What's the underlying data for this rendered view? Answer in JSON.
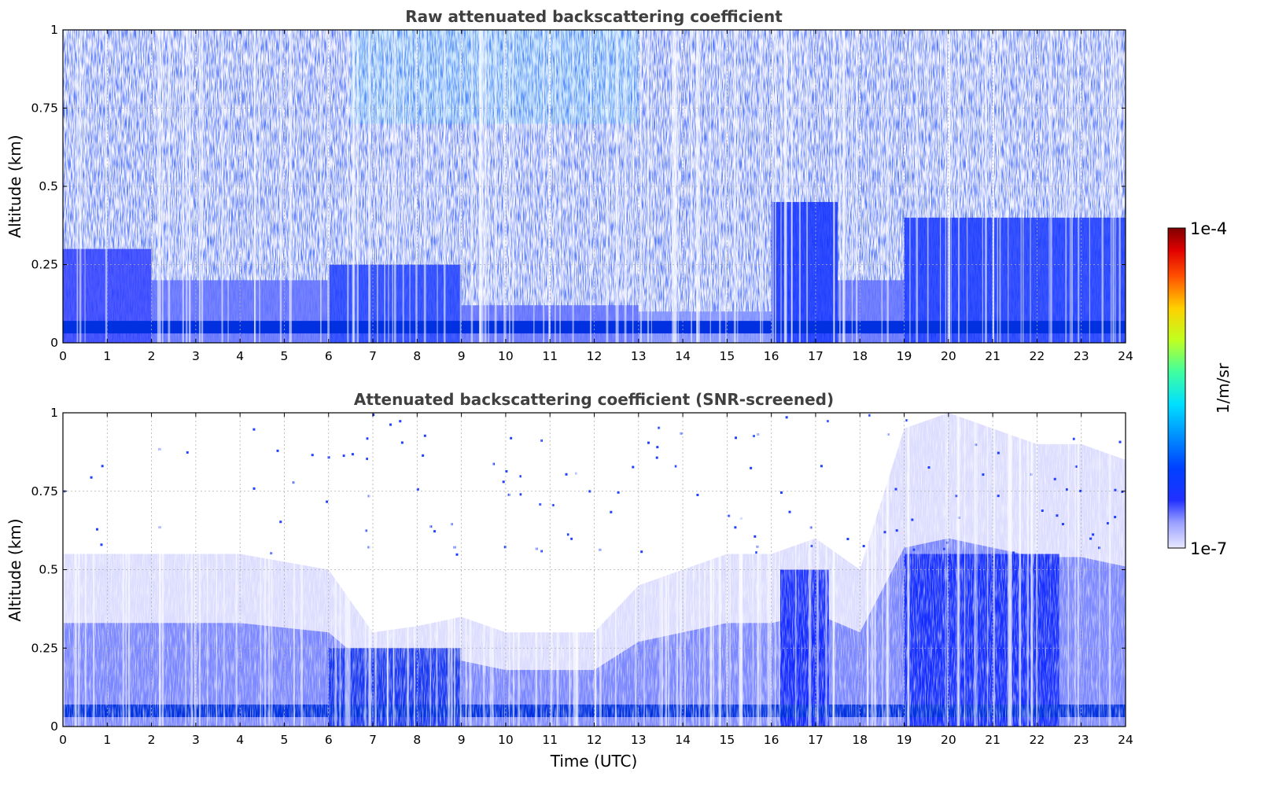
{
  "chart_data": [
    {
      "type": "heatmap",
      "title": "Raw attenuated backscattering coefficient",
      "xlabel": "",
      "ylabel": "Altitude (km)",
      "xlim": [
        0,
        24
      ],
      "ylim": [
        0,
        1
      ],
      "xticks": [
        "0",
        "1",
        "2",
        "3",
        "4",
        "5",
        "6",
        "7",
        "8",
        "9",
        "10",
        "11",
        "12",
        "13",
        "14",
        "15",
        "16",
        "17",
        "18",
        "19",
        "20",
        "21",
        "22",
        "23",
        "24"
      ],
      "yticks": [
        "0",
        "0.25",
        "0.5",
        "0.75",
        "1"
      ],
      "grid": true,
      "colormap": "jet (log scale)",
      "color_range": [
        "1e-7",
        "1e-4"
      ],
      "features": {
        "surface_layer_altitude_km": [
          0.03,
          0.07
        ],
        "noise_at_top": "dense speckle throughout profile"
      }
    },
    {
      "type": "heatmap",
      "title": "Attenuated backscattering coefficient (SNR-screened)",
      "xlabel": "Time (UTC)",
      "ylabel": "Altitude (km)",
      "xlim": [
        0,
        24
      ],
      "ylim": [
        0,
        1
      ],
      "xticks": [
        "0",
        "1",
        "2",
        "3",
        "4",
        "5",
        "6",
        "7",
        "8",
        "9",
        "10",
        "11",
        "12",
        "13",
        "14",
        "15",
        "16",
        "17",
        "18",
        "19",
        "20",
        "21",
        "22",
        "23",
        "24"
      ],
      "yticks": [
        "0",
        "0.25",
        "0.5",
        "0.75",
        "1"
      ],
      "grid": true,
      "colormap": "jet (log scale)",
      "color_range": [
        "1e-7",
        "1e-4"
      ],
      "features": {
        "boundary_layer_top_km": [
          [
            0,
            0.55
          ],
          [
            2,
            0.55
          ],
          [
            4,
            0.55
          ],
          [
            6,
            0.5
          ],
          [
            7,
            0.3
          ],
          [
            8,
            0.32
          ],
          [
            9,
            0.35
          ],
          [
            10,
            0.3
          ],
          [
            11,
            0.3
          ],
          [
            12,
            0.3
          ],
          [
            13,
            0.45
          ],
          [
            14,
            0.5
          ],
          [
            15,
            0.55
          ],
          [
            16,
            0.55
          ],
          [
            17,
            0.6
          ],
          [
            18,
            0.5
          ],
          [
            19,
            0.95
          ],
          [
            20,
            1.0
          ],
          [
            21,
            0.95
          ],
          [
            22,
            0.9
          ],
          [
            23,
            0.9
          ],
          [
            24,
            0.85
          ]
        ]
      }
    }
  ],
  "colorbar": {
    "label": "1/m/sr",
    "max_label": "1e-4",
    "min_label": "1e-7"
  }
}
